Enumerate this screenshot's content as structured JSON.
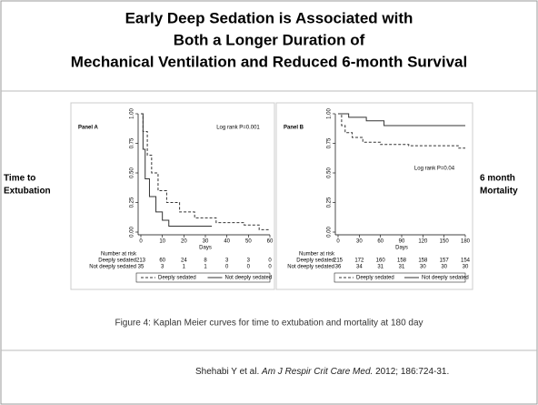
{
  "title": [
    "Early Deep Sedation is Associated with",
    "Both a Longer Duration of",
    "Mechanical Ventilation and Reduced  6-month Survival"
  ],
  "side_labels": {
    "left": [
      "Time to",
      "Extubation"
    ],
    "right": [
      "6 month",
      "Mortality"
    ]
  },
  "caption": "Figure 4:  Kaplan Meier curves for time to extubation and mortality at 180 day",
  "citation": {
    "authors": "Shehabi  Y et al.",
    "journal": "Am J Respir Crit Care Med.",
    "details": "2012; 186:724-31."
  },
  "chart_data": [
    {
      "type": "line",
      "panel": "Panel A",
      "annotation": "Log rank P=0.001",
      "x_label": "Days",
      "xlim": [
        0,
        60
      ],
      "xticks": [
        0,
        10,
        20,
        30,
        40,
        50,
        60
      ],
      "ylim": [
        0,
        1
      ],
      "yticks": [
        {
          "value": 0,
          "label": "0.00"
        },
        {
          "value": 0.25,
          "label": "0.25"
        },
        {
          "value": 0.5,
          "label": "0.50"
        },
        {
          "value": 0.75,
          "label": "0.75"
        },
        {
          "value": 1,
          "label": "1.00"
        }
      ],
      "series": [
        {
          "name": "Deeply sedated",
          "line_style": "dashed",
          "color": "#333333",
          "x": [
            0,
            1,
            1,
            3,
            3,
            5,
            5,
            8,
            8,
            12,
            12,
            18,
            18,
            25,
            25,
            35,
            35,
            48,
            48,
            55,
            55,
            60
          ],
          "values": [
            1,
            1,
            0.85,
            0.85,
            0.65,
            0.65,
            0.5,
            0.5,
            0.35,
            0.35,
            0.25,
            0.25,
            0.17,
            0.17,
            0.12,
            0.12,
            0.08,
            0.08,
            0.06,
            0.06,
            0.02,
            0.02
          ]
        },
        {
          "name": "Not deeply sedated",
          "line_style": "solid",
          "color": "#333333",
          "x": [
            0,
            1,
            1,
            2,
            2,
            4,
            4,
            7,
            7,
            10,
            10,
            13,
            13,
            33
          ],
          "values": [
            1,
            1,
            0.7,
            0.7,
            0.45,
            0.45,
            0.3,
            0.3,
            0.17,
            0.17,
            0.1,
            0.1,
            0.05,
            0.05
          ]
        }
      ],
      "risk_table": {
        "title": "Number at risk",
        "rows": [
          {
            "name": "Deeply sedated",
            "values": [
              213,
              60,
              24,
              8,
              3,
              3,
              0
            ]
          },
          {
            "name": "Not deeply sedated",
            "values": [
              35,
              3,
              1,
              1,
              0,
              0,
              0
            ]
          }
        ]
      }
    },
    {
      "type": "line",
      "panel": "Panel B",
      "annotation": "Log rank P=0.04",
      "x_label": "Days",
      "xlim": [
        0,
        180
      ],
      "xticks": [
        0,
        30,
        60,
        90,
        120,
        150,
        180
      ],
      "ylim": [
        0,
        1
      ],
      "yticks": [
        {
          "value": 0,
          "label": "0.00"
        },
        {
          "value": 0.25,
          "label": "0.25"
        },
        {
          "value": 0.5,
          "label": "0.50"
        },
        {
          "value": 0.75,
          "label": "0.75"
        },
        {
          "value": 1,
          "label": "1.00"
        }
      ],
      "series": [
        {
          "name": "Deeply sedated",
          "line_style": "dashed",
          "color": "#333333",
          "x": [
            0,
            5,
            5,
            10,
            10,
            20,
            20,
            35,
            35,
            60,
            60,
            100,
            100,
            170,
            170,
            180
          ],
          "values": [
            1,
            1,
            0.9,
            0.9,
            0.84,
            0.84,
            0.8,
            0.8,
            0.76,
            0.76,
            0.74,
            0.74,
            0.73,
            0.73,
            0.71,
            0.71
          ]
        },
        {
          "name": "Not deeply sedated",
          "line_style": "solid",
          "color": "#333333",
          "x": [
            0,
            15,
            15,
            40,
            40,
            65,
            65,
            180
          ],
          "values": [
            1,
            1,
            0.97,
            0.97,
            0.94,
            0.94,
            0.9,
            0.9
          ]
        }
      ],
      "risk_table": {
        "title": "Number at risk",
        "rows": [
          {
            "name": "Deeply sedated",
            "values": [
              215,
              172,
              160,
              158,
              158,
              157,
              154
            ]
          },
          {
            "name": "Not deeply sedated",
            "values": [
              36,
              34,
              31,
              31,
              30,
              30,
              30
            ]
          }
        ]
      }
    }
  ]
}
